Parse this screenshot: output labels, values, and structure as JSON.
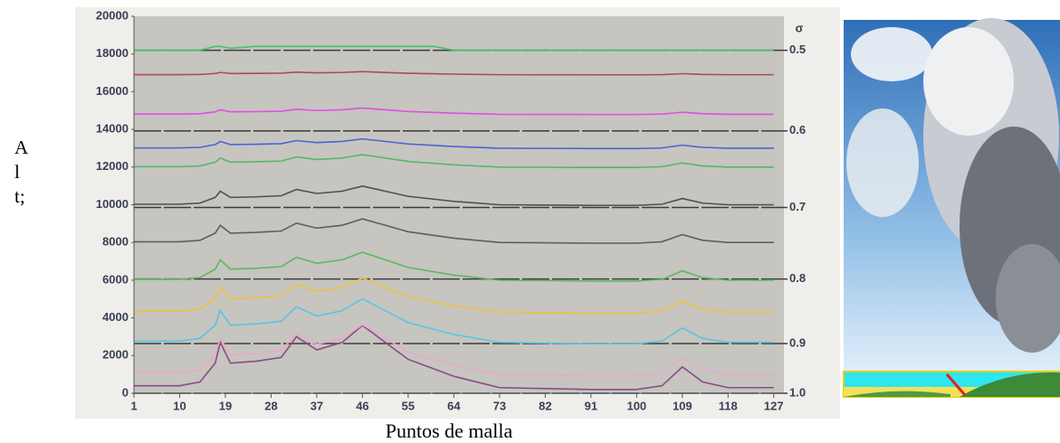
{
  "chart_data": {
    "type": "line",
    "ylabel": "Alt;",
    "xlabel": "Puntos de malla",
    "y2label": "σ",
    "x": [
      1,
      10,
      14,
      17,
      18,
      20,
      25,
      30,
      33,
      37,
      42,
      46,
      50,
      55,
      60,
      64,
      73,
      82,
      91,
      100,
      105,
      109,
      113,
      118,
      127
    ],
    "xlim": [
      1,
      129
    ],
    "xticks": [
      1,
      10,
      19,
      28,
      37,
      46,
      55,
      64,
      73,
      82,
      91,
      100,
      109,
      118,
      127
    ],
    "ylim": [
      0,
      20000
    ],
    "yticks": [
      0,
      2000,
      4000,
      6000,
      8000,
      10000,
      12000,
      14000,
      16000,
      18000,
      20000
    ],
    "y2lim": [
      1,
      0.459
    ],
    "y2ticks": [
      0.5,
      0.6,
      0.7,
      0.8,
      0.9,
      {
        "value": 1,
        "label": "1.0"
      }
    ],
    "series": [
      {
        "color": "#8a4a8a",
        "values": [
          400,
          400,
          600,
          1600,
          2700,
          1600,
          1700,
          1900,
          3000,
          2300,
          2700,
          3600,
          2800,
          1800,
          1300,
          900,
          300,
          250,
          200,
          200,
          400,
          1400,
          600,
          300,
          300
        ]
      },
      {
        "color": "#e9a9c9",
        "values": [
          1080,
          1080,
          1240,
          2040,
          2920,
          2040,
          2120,
          2280,
          3160,
          2600,
          2920,
          3640,
          3000,
          2200,
          1800,
          1480,
          1000,
          960,
          920,
          920,
          1080,
          1880,
          1240,
          1000,
          1000
        ]
      },
      {
        "color": "#59c4e6",
        "values": [
          2770,
          2770,
          2910,
          3610,
          4380,
          3610,
          3680,
          3820,
          4590,
          4100,
          4380,
          5010,
          4450,
          3750,
          3400,
          3120,
          2700,
          2665,
          2630,
          2630,
          2770,
          3470,
          2910,
          2700,
          2700
        ]
      },
      {
        "color": "#f0c040",
        "values": [
          4355,
          4355,
          4465,
          5015,
          5620,
          5015,
          5070,
          5180,
          5785,
          5400,
          5620,
          6115,
          5675,
          5125,
          4850,
          4630,
          4300,
          4272,
          4245,
          4245,
          4355,
          4905,
          4465,
          4300,
          4300
        ]
      },
      {
        "color": "#5cb85c",
        "values": [
          6045,
          6045,
          6135,
          6585,
          7080,
          6585,
          6630,
          6720,
          7215,
          6900,
          7080,
          7485,
          7125,
          6675,
          6450,
          6270,
          6000,
          5977,
          5955,
          5955,
          6045,
          6495,
          6135,
          6000,
          6000
        ]
      },
      {
        "color": "#5a5f66",
        "values": [
          8038,
          8038,
          8114,
          8494,
          8912,
          8494,
          8532,
          8608,
          9026,
          8760,
          8912,
          9254,
          8950,
          8570,
          8380,
          8228,
          8000,
          7981,
          7962,
          7962,
          8038,
          8418,
          8114,
          8000,
          8000
        ]
      },
      {
        "color": "#4b5055",
        "values": [
          10030,
          10030,
          10090,
          10390,
          10720,
          10390,
          10420,
          10480,
          10810,
          10600,
          10720,
          10990,
          10750,
          10450,
          10300,
          10180,
          10000,
          9985,
          9970,
          9970,
          10030,
          10330,
          10090,
          10000,
          10000
        ]
      },
      {
        "color": "#52b86a",
        "values": [
          12020,
          12020,
          12060,
          12260,
          12480,
          12260,
          12280,
          12320,
          12540,
          12400,
          12480,
          12660,
          12500,
          12300,
          12200,
          12120,
          12000,
          11990,
          11980,
          11980,
          12020,
          12220,
          12060,
          12000,
          12000
        ]
      },
      {
        "color": "#4a63d8",
        "values": [
          13015,
          13015,
          13045,
          13195,
          13360,
          13195,
          13210,
          13240,
          13405,
          13300,
          13360,
          13495,
          13375,
          13225,
          13150,
          13090,
          13000,
          12992,
          12985,
          12985,
          13015,
          13165,
          13045,
          13000,
          13000
        ]
      },
      {
        "color": "#e050e0",
        "values": [
          14810,
          14810,
          14830,
          14930,
          15040,
          14930,
          14940,
          14960,
          15070,
          15000,
          15040,
          15130,
          15050,
          14950,
          14900,
          14860,
          14800,
          14795,
          14790,
          14790,
          14810,
          14910,
          14830,
          14800,
          14800
        ]
      },
      {
        "color": "#b04a5a",
        "values": [
          16905,
          16905,
          16915,
          16965,
          17020,
          16965,
          16970,
          16980,
          17035,
          17000,
          17020,
          17065,
          17025,
          16975,
          16950,
          16930,
          16900,
          16897,
          16895,
          16895,
          16905,
          16955,
          16915,
          16900,
          16900
        ]
      },
      {
        "color": "#4cbf6a",
        "values": [
          18200,
          18200,
          18200,
          18400,
          18400,
          18300,
          18400,
          18400,
          18400,
          18400,
          18400,
          18400,
          18400,
          18400,
          18400,
          18200,
          18200,
          18200,
          18200,
          18200,
          18200,
          18200,
          18200,
          18200,
          18200
        ]
      }
    ]
  }
}
